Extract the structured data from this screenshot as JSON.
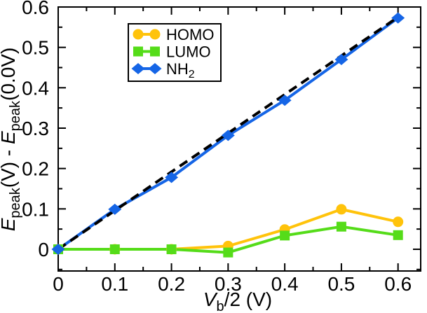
{
  "chart_data": {
    "type": "line",
    "title": "",
    "x": [
      0,
      0.1,
      0.2,
      0.3,
      0.4,
      0.5,
      0.6
    ],
    "series": [
      {
        "name": "HOMO",
        "label_parts": [
          {
            "t": "HOMO"
          }
        ],
        "color": "#FFC30B",
        "marker": "circle",
        "values": [
          0,
          0,
          0,
          0.008,
          0.049,
          0.099,
          0.068
        ]
      },
      {
        "name": "LUMO",
        "label_parts": [
          {
            "t": "LUMO"
          }
        ],
        "color": "#55DC19",
        "marker": "square",
        "values": [
          0,
          0,
          0,
          -0.008,
          0.034,
          0.056,
          0.035
        ]
      },
      {
        "name": "NH2",
        "label_parts": [
          {
            "t": "NH"
          },
          {
            "t": "2",
            "sub": true
          }
        ],
        "color": "#1565E6",
        "marker": "diamond",
        "values": [
          0,
          0.099,
          0.178,
          0.282,
          0.369,
          0.47,
          0.573
        ]
      }
    ],
    "reference_line": {
      "style": "dashed",
      "color": "#000000",
      "x": [
        0,
        0.6
      ],
      "y": [
        0,
        0.575
      ]
    },
    "xlabel_parts": [
      {
        "t": "V",
        "italic": true
      },
      {
        "t": "b",
        "sub": true
      },
      {
        "t": "/2 (V)"
      }
    ],
    "ylabel_parts": [
      {
        "t": "E",
        "italic": true
      },
      {
        "t": "peak",
        "sub": true
      },
      {
        "t": "(V) - "
      },
      {
        "t": "E",
        "italic": true
      },
      {
        "t": "peak",
        "sub": true
      },
      {
        "t": "(0.0V)"
      }
    ],
    "xlim": [
      0,
      0.64
    ],
    "ylim": [
      -0.0538,
      0.6
    ],
    "x_major_ticks": [
      0,
      0.1,
      0.2,
      0.3,
      0.4,
      0.5,
      0.6
    ],
    "x_tick_labels": [
      "0",
      "0.1",
      "0.2",
      "0.3",
      "0.4",
      "0.5",
      "0.6"
    ],
    "x_minor_ticks": [
      0.05,
      0.15,
      0.25,
      0.35,
      0.45,
      0.55
    ],
    "y_major_ticks": [
      0,
      0.1,
      0.2,
      0.3,
      0.4,
      0.5,
      0.6
    ],
    "y_tick_labels": [
      "0",
      "0.1",
      "0.2",
      "0.3",
      "0.4",
      "0.5",
      "0.6"
    ],
    "y_minor_ticks": [
      -0.05,
      0.05,
      0.15,
      0.25,
      0.35,
      0.45,
      0.55
    ],
    "legend": {
      "position": "upper-left-inset",
      "entries": [
        "HOMO",
        "LUMO",
        "NH2"
      ]
    },
    "grid": false,
    "axis_color": "#000000",
    "background_color": "#ffffff"
  }
}
